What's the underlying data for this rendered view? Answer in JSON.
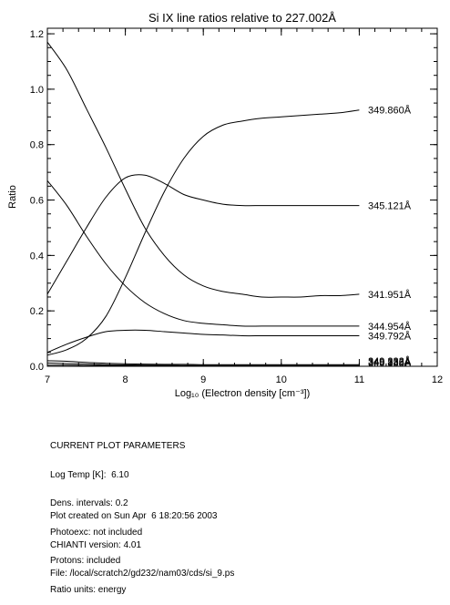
{
  "chart_data": {
    "type": "line",
    "title": "Si IX line ratios relative to 227.002Å",
    "xlabel": "Log₁₀ (Electron density [cm⁻³])",
    "ylabel": "Ratio",
    "xlim": [
      7,
      12
    ],
    "ylim": [
      0,
      1.22
    ],
    "x_ticks": [
      "7",
      "8",
      "9",
      "10",
      "11",
      "12"
    ],
    "y_ticks": [
      "0.0",
      "0.2",
      "0.4",
      "0.6",
      "0.8",
      "1.0",
      "1.2"
    ],
    "x": [
      7.0,
      7.25,
      7.5,
      7.75,
      8.0,
      8.25,
      8.5,
      8.75,
      9.0,
      9.25,
      9.5,
      9.75,
      10.0,
      10.25,
      10.5,
      10.75,
      11.0
    ],
    "series": [
      {
        "name": "349.860Å",
        "values": [
          0.04,
          0.06,
          0.1,
          0.18,
          0.32,
          0.48,
          0.63,
          0.75,
          0.83,
          0.87,
          0.885,
          0.895,
          0.9,
          0.905,
          0.91,
          0.915,
          0.925
        ]
      },
      {
        "name": "345.121Å",
        "values": [
          0.26,
          0.38,
          0.5,
          0.61,
          0.68,
          0.69,
          0.66,
          0.62,
          0.6,
          0.585,
          0.58,
          0.58,
          0.58,
          0.58,
          0.58,
          0.58,
          0.58
        ]
      },
      {
        "name": "341.951Å",
        "values": [
          1.17,
          1.07,
          0.93,
          0.79,
          0.64,
          0.5,
          0.4,
          0.33,
          0.29,
          0.27,
          0.26,
          0.25,
          0.25,
          0.25,
          0.255,
          0.255,
          0.26
        ]
      },
      {
        "name": "344.954Å",
        "values": [
          0.67,
          0.58,
          0.47,
          0.37,
          0.29,
          0.23,
          0.19,
          0.165,
          0.155,
          0.15,
          0.145,
          0.145,
          0.145,
          0.145,
          0.145,
          0.145,
          0.145
        ]
      },
      {
        "name": "349.792Å",
        "values": [
          0.05,
          0.08,
          0.105,
          0.125,
          0.13,
          0.13,
          0.125,
          0.12,
          0.115,
          0.113,
          0.11,
          0.11,
          0.11,
          0.11,
          0.11,
          0.11,
          0.11
        ]
      },
      {
        "name": "349.332Å",
        "values": [
          0.02,
          0.018,
          0.014,
          0.011,
          0.009,
          0.008,
          0.007,
          0.007,
          0.006,
          0.006,
          0.006,
          0.006,
          0.006,
          0.006,
          0.006,
          0.006,
          0.006
        ]
      },
      {
        "name": "349.336Å",
        "values": [
          0.012,
          0.01,
          0.008,
          0.006,
          0.005,
          0.004,
          0.004,
          0.003,
          0.003,
          0.003,
          0.003,
          0.003,
          0.003,
          0.003,
          0.003,
          0.003,
          0.003
        ]
      },
      {
        "name": "340.888Å",
        "values": [
          0.004,
          0.004,
          0.003,
          0.003,
          0.002,
          0.002,
          0.002,
          0.002,
          0.002,
          0.002,
          0.002,
          0.002,
          0.002,
          0.002,
          0.002,
          0.002,
          0.002
        ]
      }
    ],
    "grid": false,
    "legend": "line-end labels"
  },
  "params": {
    "heading": "CURRENT PLOT PARAMETERS",
    "lines": [
      "Log Temp [K]:  6.10",
      "Dens. intervals: 0.2",
      "Photoexc: not included",
      "Protons: included",
      "Ratio units: energy"
    ]
  },
  "footer": {
    "lines": [
      "Plot created on Sun Apr  6 18:20:56 2003",
      "CHIANTI version: 4.01",
      "File: /local/scratch2/gd232/nam03/cds/si_9.ps"
    ]
  }
}
